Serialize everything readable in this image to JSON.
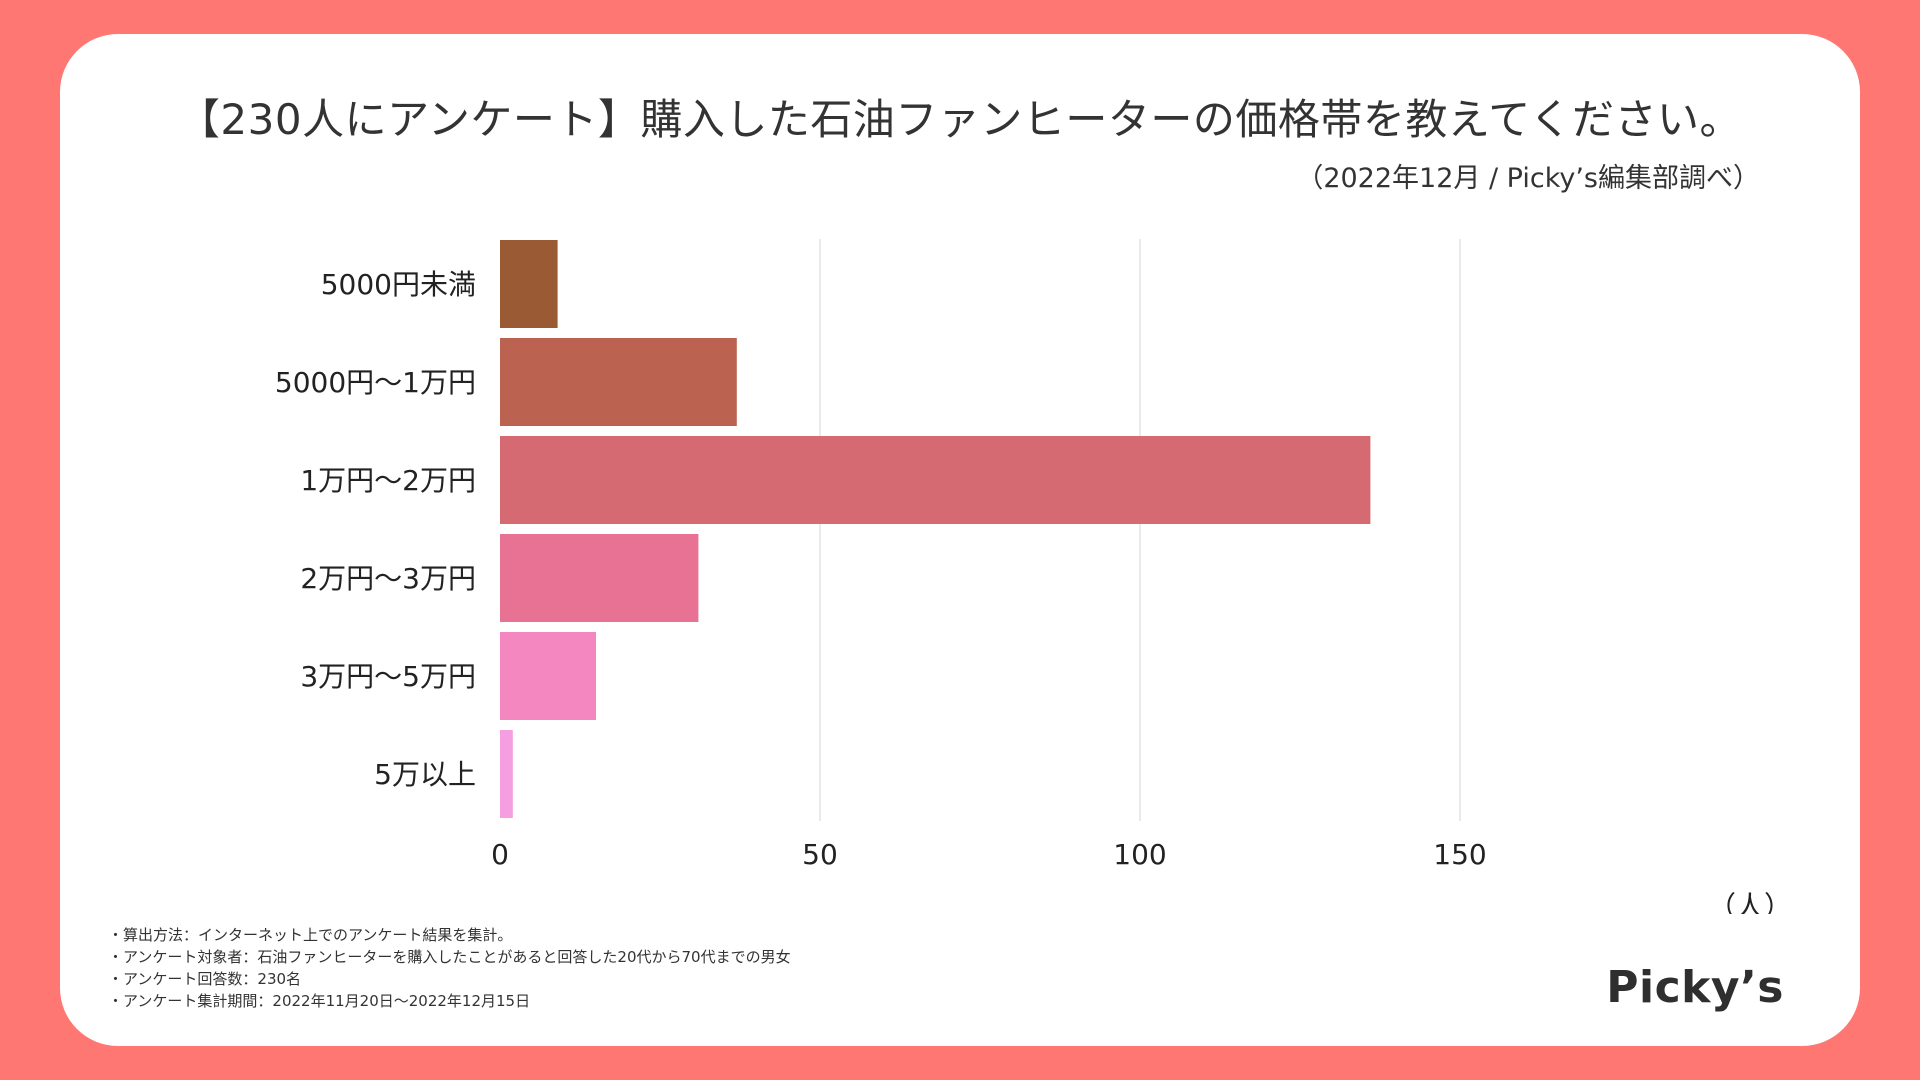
{
  "page": {
    "title": "【230人にアンケート】購入した石油ファンヒーターの価格帯を教えてください。",
    "subtitle": "（2022年12月 / Picky’s編集部調べ）",
    "notes": [
      "・算出方法：インターネット上でのアンケート結果を集計。",
      "・アンケート対象者：石油ファンヒーターを購入したことがあると回答した20代から70代までの男女",
      "・アンケート回答数：230名",
      "・アンケート集計期間：2022年11月20日〜2022年12月15日"
    ],
    "logo": "Picky’s",
    "colors": {
      "background": "#FF7772",
      "card": "#FFFFFF",
      "text": "#333333",
      "grid": "#E3E3E3"
    }
  },
  "chart_data": {
    "type": "bar",
    "orientation": "horizontal",
    "categories": [
      "5000円未満",
      "5000円〜1万円",
      "1万円〜2万円",
      "2万円〜3万円",
      "3万円〜5万円",
      "5万以上"
    ],
    "values": [
      9,
      37,
      136,
      31,
      15,
      2
    ],
    "colors": [
      "#9A5A33",
      "#BB6350",
      "#D66A72",
      "#E87293",
      "#F486C0",
      "#F59EE2"
    ],
    "xlim": [
      0,
      150
    ],
    "xticks": [
      0,
      50,
      100,
      150
    ],
    "xlabel": "（人）",
    "grid": true,
    "legend": "none"
  }
}
